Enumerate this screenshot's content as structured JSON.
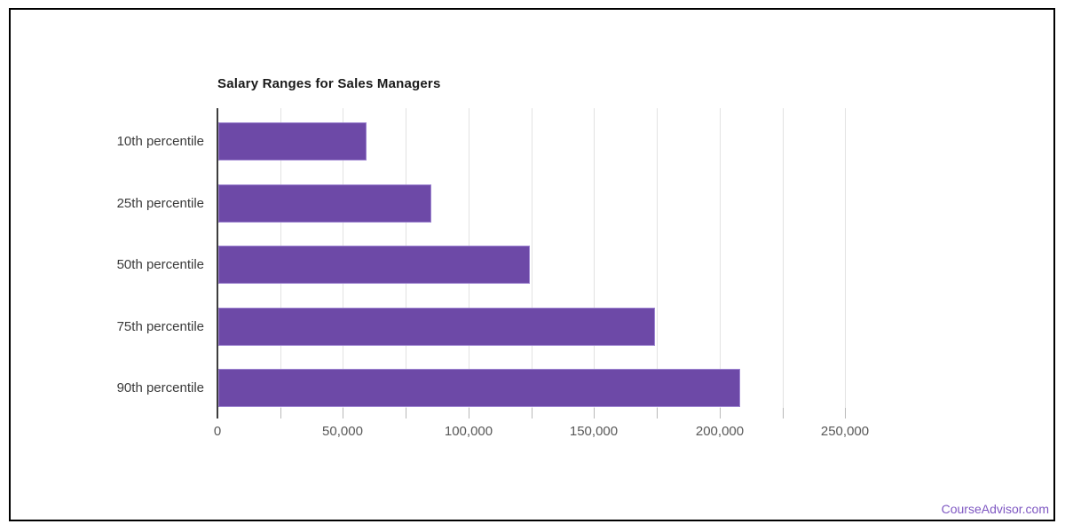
{
  "frame": {
    "border_color": "#000000",
    "background_color": "#ffffff"
  },
  "chart_data": {
    "type": "bar",
    "orientation": "horizontal",
    "title": "Salary Ranges for Sales Managers",
    "categories": [
      "10th percentile",
      "25th percentile",
      "50th percentile",
      "75th percentile",
      "90th percentile"
    ],
    "values": [
      59000,
      85000,
      124000,
      174000,
      208000
    ],
    "xlabel": "",
    "ylabel": "",
    "xlim": [
      0,
      250000
    ],
    "gridline_step": 25000,
    "grid_on": true,
    "legend": "none",
    "x_ticks": [
      {
        "value": 0,
        "label": "0"
      },
      {
        "value": 50000,
        "label": "50,000"
      },
      {
        "value": 100000,
        "label": "100,000"
      },
      {
        "value": 150000,
        "label": "150,000"
      },
      {
        "value": 200000,
        "label": "200,000"
      },
      {
        "value": 250000,
        "label": "250,000"
      }
    ],
    "bar_color": "#6d49a7",
    "bar_border_color": "#9b82cf",
    "gridline_color": "#e2e2e2",
    "axis_line_color": "#3d3d3d",
    "title_color": "#1a1a1a",
    "label_color": "#3a3a3a"
  },
  "watermark": {
    "label": "CourseAdvisor.com",
    "color": "#7e57c2"
  }
}
